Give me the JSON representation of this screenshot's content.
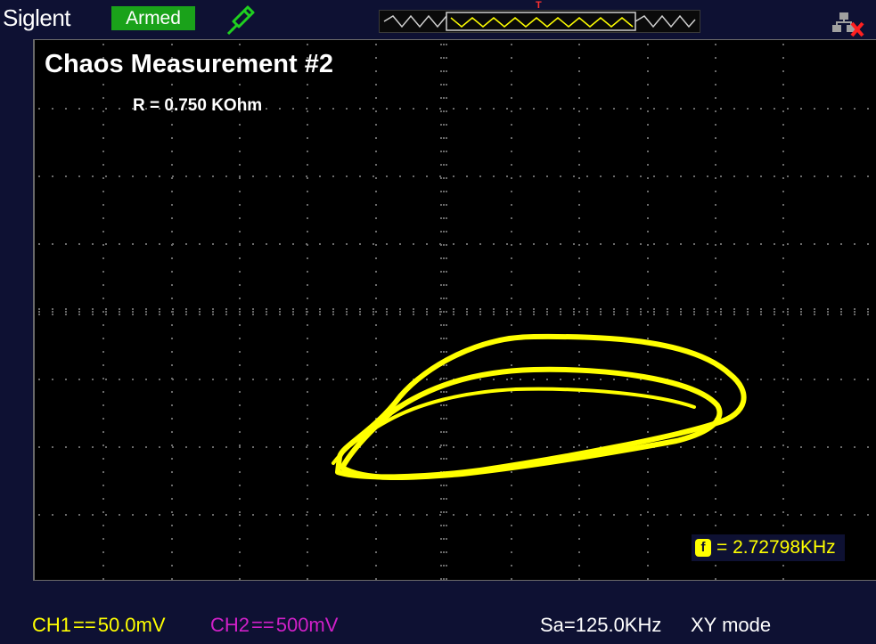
{
  "header": {
    "brand": "Siglent",
    "status": "Armed",
    "trigger_marker": "T",
    "colors": {
      "status_bg": "#1aa21a",
      "background": "#0e1133"
    },
    "icons": [
      "probe-icon",
      "network-disconnected-icon"
    ]
  },
  "screen": {
    "title": "Chaos Measurement #2",
    "subtitle": "R = 0.750 KOhm",
    "frequency_icon": "f",
    "frequency_readout": "= 2.72798KHz",
    "trace_color": "#ffff00"
  },
  "footer": {
    "ch1": {
      "label": "CH1",
      "coupling": "==",
      "scale": "50.0mV",
      "color": "#ffff00"
    },
    "ch2": {
      "label": "CH2",
      "coupling": "==",
      "scale": "500mV",
      "color": "#d020c8"
    },
    "sample_rate": "Sa=125.0KHz",
    "mode": "XY mode"
  }
}
